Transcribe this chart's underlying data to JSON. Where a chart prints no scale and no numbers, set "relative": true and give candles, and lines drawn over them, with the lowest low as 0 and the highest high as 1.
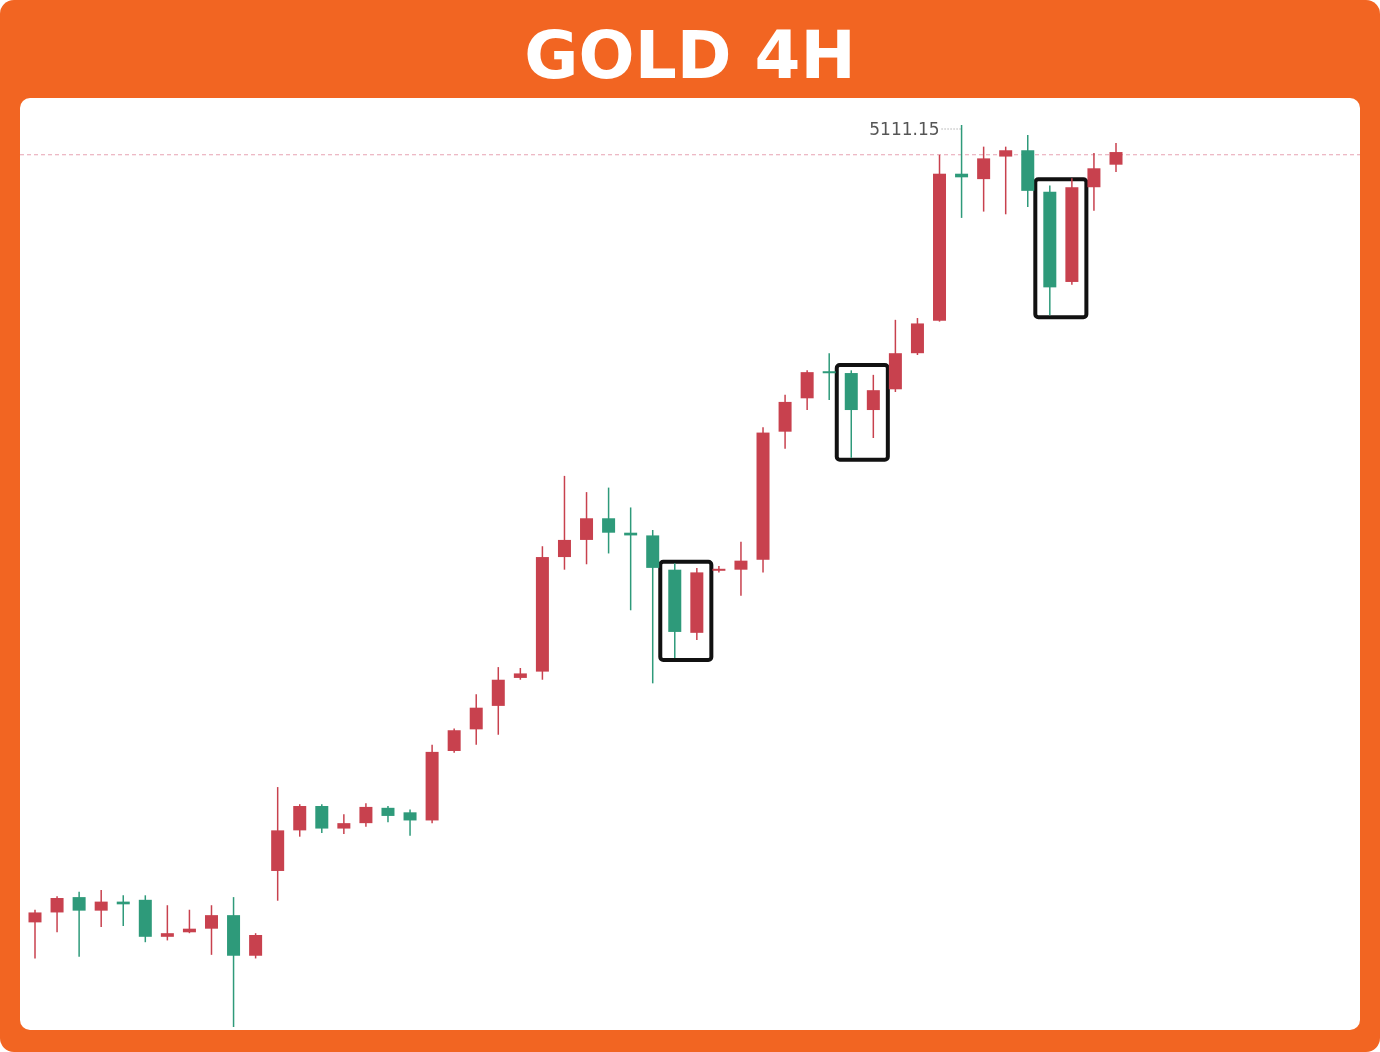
{
  "chart_data": {
    "type": "candlestick",
    "title": "GOLD 4H",
    "relative": true,
    "categories": [
      null,
      null,
      null,
      null,
      null,
      null,
      null,
      null,
      null,
      null,
      null,
      null,
      null,
      null,
      null,
      null,
      null,
      null,
      null,
      null,
      null,
      null,
      null,
      null,
      null,
      null,
      null,
      null,
      null,
      null,
      null,
      null,
      null,
      null,
      null,
      null,
      null,
      null,
      null,
      null,
      null,
      null,
      null,
      null,
      null,
      null,
      null,
      null,
      null,
      null
    ],
    "ohlc": [
      [
        0.116,
        0.13,
        0.076,
        0.127
      ],
      [
        0.127,
        0.145,
        0.105,
        0.143
      ],
      [
        0.144,
        0.15,
        0.078,
        0.129
      ],
      [
        0.129,
        0.152,
        0.111,
        0.139
      ],
      [
        0.139,
        0.146,
        0.112,
        0.136
      ],
      [
        0.141,
        0.146,
        0.094,
        0.1
      ],
      [
        0.1,
        0.135,
        0.096,
        0.104
      ],
      [
        0.105,
        0.13,
        0.104,
        0.109
      ],
      [
        0.109,
        0.135,
        0.08,
        0.124
      ],
      [
        0.124,
        0.144,
        0,
        0.079
      ],
      [
        0.079,
        0.104,
        0.076,
        0.102
      ],
      [
        0.173,
        0.266,
        0.14,
        0.218
      ],
      [
        0.218,
        0.247,
        0.211,
        0.245
      ],
      [
        0.245,
        0.247,
        0.215,
        0.22
      ],
      [
        0.22,
        0.236,
        0.214,
        0.226
      ],
      [
        0.226,
        0.248,
        0.222,
        0.244
      ],
      [
        0.243,
        0.245,
        0.227,
        0.234
      ],
      [
        0.238,
        0.241,
        0.212,
        0.229
      ],
      [
        0.229,
        0.313,
        0.226,
        0.305
      ],
      [
        0.306,
        0.331,
        0.304,
        0.329
      ],
      [
        0.33,
        0.369,
        0.313,
        0.354
      ],
      [
        0.356,
        0.399,
        0.324,
        0.385
      ],
      [
        0.387,
        0.398,
        0.385,
        0.392
      ],
      [
        0.394,
        0.533,
        0.385,
        0.521
      ],
      [
        0.521,
        0.611,
        0.507,
        0.54
      ],
      [
        0.54,
        0.593,
        0.513,
        0.564
      ],
      [
        0.564,
        0.598,
        0.525,
        0.548
      ],
      [
        0.548,
        0.576,
        0.462,
        0.545
      ],
      [
        0.545,
        0.551,
        0.381,
        0.509
      ],
      [
        0.507,
        0.514,
        0.409,
        0.438
      ],
      [
        0.437,
        0.509,
        0.429,
        0.504
      ],
      [
        0.506,
        0.511,
        0.504,
        0.508
      ],
      [
        0.507,
        0.538,
        0.478,
        0.517
      ],
      [
        0.518,
        0.665,
        0.504,
        0.659
      ],
      [
        0.66,
        0.701,
        0.641,
        0.693
      ],
      [
        0.697,
        0.728,
        0.684,
        0.726
      ],
      [
        0.727,
        0.747,
        0.695,
        0.725
      ],
      [
        0.725,
        0.728,
        0.631,
        0.684
      ],
      [
        0.684,
        0.723,
        0.653,
        0.706
      ],
      [
        0.707,
        0.784,
        0.704,
        0.747
      ],
      [
        0.747,
        0.786,
        0.745,
        0.78
      ],
      [
        0.783,
        0.967,
        0.782,
        0.946
      ],
      [
        0.946,
        1,
        0.897,
        0.942
      ],
      [
        0.94,
        0.976,
        0.904,
        0.963
      ],
      [
        0.965,
        0.976,
        0.901,
        0.972
      ],
      [
        0.972,
        0.989,
        0.909,
        0.927
      ],
      [
        0.926,
        0.933,
        0.789,
        0.82
      ],
      [
        0.826,
        0.941,
        0.823,
        0.931
      ],
      [
        0.931,
        0.969,
        0.905,
        0.952
      ],
      [
        0.956,
        0.98,
        0.948,
        0.97
      ]
    ],
    "colors": [
      "#c8414e",
      "#c8414e",
      "#2e9a7a",
      "#c8414e",
      "#2e9a7a",
      "#2e9a7a",
      "#c8414e",
      "#c8414e",
      "#c8414e",
      "#2e9a7a",
      "#c8414e",
      "#c8414e",
      "#c8414e",
      "#2e9a7a",
      "#c8414e",
      "#c8414e",
      "#2e9a7a",
      "#2e9a7a",
      "#c8414e",
      "#c8414e",
      "#c8414e",
      "#c8414e",
      "#c8414e",
      "#c8414e",
      "#c8414e",
      "#c8414e",
      "#2e9a7a",
      "#2e9a7a",
      "#2e9a7a",
      "#2e9a7a",
      "#c8414e",
      "#c8414e",
      "#c8414e",
      "#c8414e",
      "#c8414e",
      "#c8414e",
      "#2e9a7a",
      "#2e9a7a",
      "#c8414e",
      "#c8414e",
      "#c8414e",
      "#c8414e",
      "#2e9a7a",
      "#c8414e",
      "#c8414e",
      "#2e9a7a",
      "#2e9a7a",
      "#c8414e",
      "#c8414e",
      "#c8414e"
    ],
    "annotations": [
      "5111.15"
    ],
    "ref_lines": [
      {
        "axis": "y",
        "value": 0.967,
        "color": "#e8a3b3",
        "line_style": "dashed"
      }
    ]
  }
}
